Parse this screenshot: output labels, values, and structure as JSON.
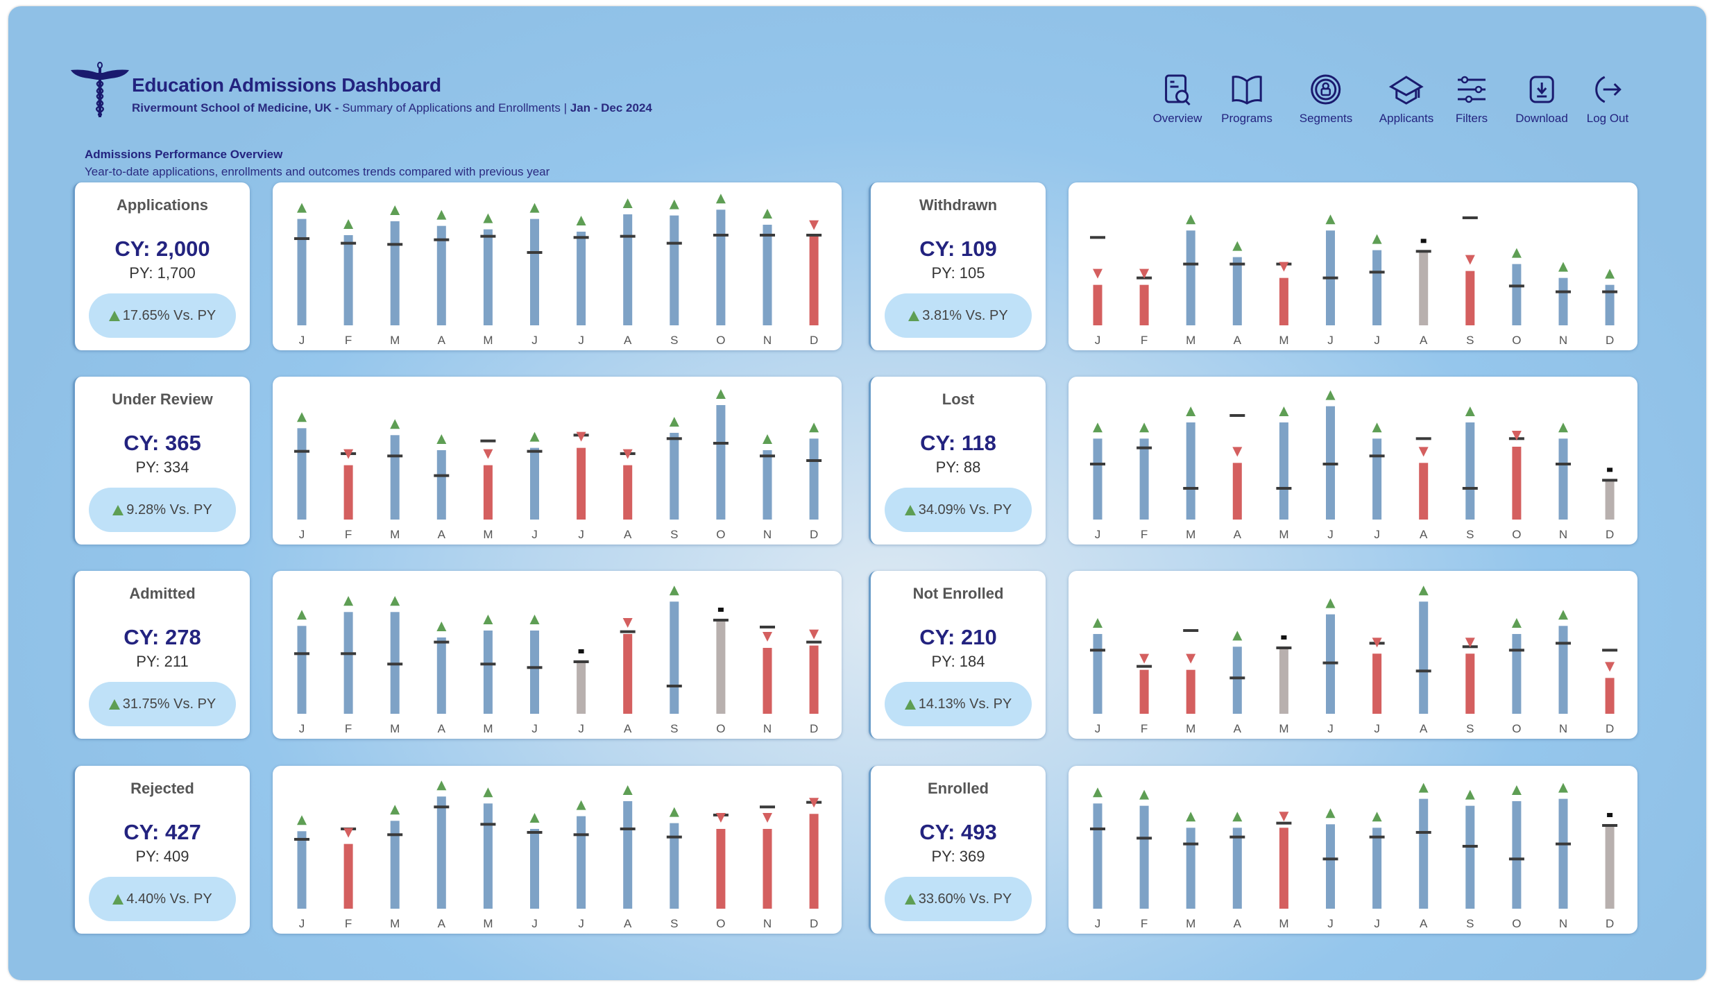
{
  "header": {
    "title": "Education Admissions Dashboard",
    "school": "Rivermount School of Medicine, UK -",
    "summary": "Summary of Applications and Enrollments |",
    "period": "Jan - Dec 2024",
    "logo": "caduceus-logo"
  },
  "section": {
    "title": "Admissions Performance Overview",
    "description": "Year-to-date applications, enrollments and outcomes trends compared with previous year"
  },
  "nav": [
    {
      "label": "Overview",
      "icon": "document-search-icon"
    },
    {
      "label": "Programs",
      "icon": "open-book-icon"
    },
    {
      "label": "Segments",
      "icon": "user-target-icon"
    },
    {
      "label": "Applicants",
      "icon": "graduation-cap-icon"
    },
    {
      "label": "Filters",
      "icon": "sliders-icon"
    },
    {
      "label": "Download",
      "icon": "download-icon"
    },
    {
      "label": "Log Out",
      "icon": "logout-icon"
    }
  ],
  "colors": {
    "up": "#7ea2c6",
    "down": "#d45f5f",
    "flat": "#b8b0ae",
    "up_arrow": "#5e9e54",
    "down_arrow": "#d45f5f",
    "py_marker": "#3a3a3a",
    "title": "#23237f"
  },
  "kpis": [
    {
      "title": "Applications",
      "cy": "CY: 2,000",
      "py": "PY: 1,700",
      "change": "17.65% Vs. PY",
      "trend": "up"
    },
    {
      "title": "Under Review",
      "cy": "CY: 365",
      "py": "PY: 334",
      "change": "9.28% Vs. PY",
      "trend": "up"
    },
    {
      "title": "Admitted",
      "cy": "CY: 278",
      "py": "PY: 211",
      "change": "31.75% Vs. PY",
      "trend": "up"
    },
    {
      "title": "Rejected",
      "cy": "CY: 427",
      "py": "PY: 409",
      "change": "4.40% Vs. PY",
      "trend": "up"
    },
    {
      "title": "Withdrawn",
      "cy": "CY: 109",
      "py": "PY: 105",
      "change": "3.81% Vs. PY",
      "trend": "up"
    },
    {
      "title": "Lost",
      "cy": "CY: 118",
      "py": "PY: 88",
      "change": "34.09% Vs. PY",
      "trend": "up"
    },
    {
      "title": "Not Enrolled",
      "cy": "CY: 210",
      "py": "PY: 184",
      "change": "14.13% Vs. PY",
      "trend": "up"
    },
    {
      "title": "Enrolled",
      "cy": "CY: 493",
      "py": "PY: 369",
      "change": "33.60% Vs. PY",
      "trend": "up"
    }
  ],
  "chart_data": [
    {
      "type": "bar",
      "kpi": "Applications",
      "categories": [
        "J",
        "F",
        "M",
        "A",
        "M",
        "J",
        "J",
        "A",
        "S",
        "O",
        "N",
        "D"
      ],
      "cy": [
        92,
        78,
        90,
        86,
        83,
        92,
        81,
        96,
        95,
        100,
        87,
        77
      ],
      "py": [
        75,
        71,
        70,
        74,
        77,
        63,
        76,
        77,
        71,
        78,
        78,
        78
      ]
    },
    {
      "type": "bar",
      "kpi": "Under Review",
      "categories": [
        "J",
        "F",
        "M",
        "A",
        "M",
        "J",
        "J",
        "A",
        "S",
        "O",
        "N",
        "D"
      ],
      "cy": [
        79,
        47,
        73,
        60,
        47,
        62,
        62,
        47,
        75,
        99,
        60,
        70
      ],
      "py": [
        59,
        57,
        55,
        38,
        68,
        59,
        73,
        57,
        70,
        66,
        55,
        51
      ]
    },
    {
      "type": "bar",
      "kpi": "Admitted",
      "categories": [
        "J",
        "F",
        "M",
        "A",
        "M",
        "J",
        "J",
        "A",
        "S",
        "O",
        "N",
        "D"
      ],
      "cy": [
        76,
        88,
        88,
        66,
        72,
        72,
        45,
        69,
        97,
        81,
        57,
        59
      ],
      "py": [
        52,
        52,
        43,
        62,
        43,
        40,
        45,
        71,
        24,
        81,
        75,
        62
      ]
    },
    {
      "type": "bar",
      "kpi": "Rejected",
      "categories": [
        "J",
        "F",
        "M",
        "A",
        "M",
        "J",
        "J",
        "A",
        "S",
        "O",
        "N",
        "D"
      ],
      "cy": [
        67,
        56,
        76,
        97,
        91,
        69,
        80,
        93,
        74,
        69,
        69,
        82
      ],
      "py": [
        60,
        69,
        64,
        88,
        73,
        66,
        64,
        69,
        62,
        81,
        88,
        92
      ]
    },
    {
      "type": "bar",
      "kpi": "Withdrawn",
      "categories": [
        "J",
        "F",
        "M",
        "A",
        "M",
        "J",
        "J",
        "A",
        "S",
        "O",
        "N",
        "D"
      ],
      "cy": [
        35,
        35,
        82,
        59,
        41,
        82,
        65,
        64,
        47,
        53,
        41,
        35
      ],
      "py": [
        76,
        41,
        53,
        53,
        53,
        41,
        46,
        64,
        93,
        34,
        29,
        29
      ]
    },
    {
      "type": "bar",
      "kpi": "Lost",
      "categories": [
        "J",
        "F",
        "M",
        "A",
        "M",
        "J",
        "J",
        "A",
        "S",
        "O",
        "N",
        "D"
      ],
      "cy": [
        70,
        70,
        84,
        49,
        84,
        98,
        70,
        49,
        84,
        63,
        70,
        34
      ],
      "py": [
        48,
        62,
        27,
        90,
        27,
        48,
        55,
        70,
        27,
        70,
        48,
        34
      ]
    },
    {
      "type": "bar",
      "kpi": "Not Enrolled",
      "categories": [
        "J",
        "F",
        "M",
        "A",
        "M",
        "J",
        "J",
        "A",
        "S",
        "O",
        "N",
        "D"
      ],
      "cy": [
        69,
        38,
        38,
        58,
        57,
        86,
        52,
        97,
        52,
        69,
        76,
        31
      ],
      "py": [
        55,
        41,
        72,
        31,
        57,
        44,
        61,
        37,
        58,
        55,
        61,
        55
      ]
    },
    {
      "type": "bar",
      "kpi": "Enrolled",
      "categories": [
        "J",
        "F",
        "M",
        "A",
        "M",
        "J",
        "J",
        "A",
        "S",
        "O",
        "N",
        "D"
      ],
      "cy": [
        91,
        89,
        70,
        70,
        70,
        73,
        70,
        95,
        89,
        93,
        95,
        72
      ],
      "py": [
        69,
        61,
        56,
        62,
        74,
        43,
        62,
        66,
        54,
        43,
        56,
        72
      ]
    }
  ]
}
